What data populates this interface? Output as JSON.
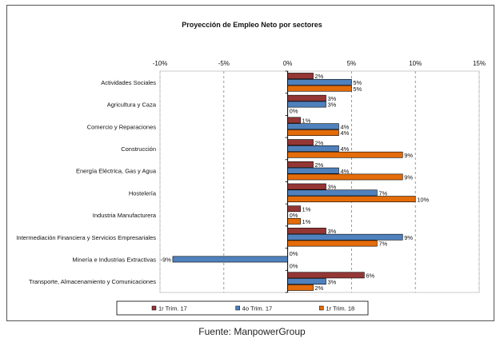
{
  "chart_data": {
    "type": "bar",
    "orientation": "horizontal",
    "title": "Proyección de Empleo Neto por sectores",
    "xlim": [
      -10,
      15
    ],
    "xticks": [
      -10,
      -5,
      0,
      5,
      10,
      15
    ],
    "xtick_labels": [
      "-10%",
      "-5%",
      "0%",
      "5%",
      "10%",
      "15%"
    ],
    "grid": true,
    "legend_position": "bottom",
    "categories": [
      "Actividades Sociales",
      "Agricultura y Caza",
      "Comercio y Reparaciones",
      "Construcción",
      "Energía Eléctrica, Gas y Agua",
      "Hostelería",
      "Industria Manufacturera",
      "Intermediación Financiera y Servicios Empresariales",
      "Minería e Industrias Extractivas",
      "Transporte, Almacenamiento y Comunicaciones"
    ],
    "series": [
      {
        "name": "1r Trim. 17",
        "color": "#943634",
        "values": [
          2,
          3,
          1,
          2,
          2,
          3,
          1,
          3,
          0,
          6
        ],
        "labels": [
          "2%",
          "3%",
          "1%",
          "2%",
          "2%",
          "3%",
          "1%",
          "3%",
          "0%",
          "6%"
        ]
      },
      {
        "name": "4o Trim. 17",
        "color": "#4F81BD",
        "values": [
          5,
          3,
          4,
          4,
          4,
          7,
          0,
          9,
          -9,
          3
        ],
        "labels": [
          "5%",
          "3%",
          "4%",
          "4%",
          "4%",
          "7%",
          "0%",
          "9%",
          "-9%",
          "3%"
        ]
      },
      {
        "name": "1r Trim. 18",
        "color": "#E46C0A",
        "values": [
          5,
          0,
          4,
          9,
          9,
          10,
          1,
          7,
          0,
          2
        ],
        "labels": [
          "5%",
          "0%",
          "4%",
          "9%",
          "9%",
          "10%",
          "1%",
          "7%",
          "0%",
          "2%"
        ]
      }
    ]
  },
  "source": "Fuente: ManpowerGroup"
}
